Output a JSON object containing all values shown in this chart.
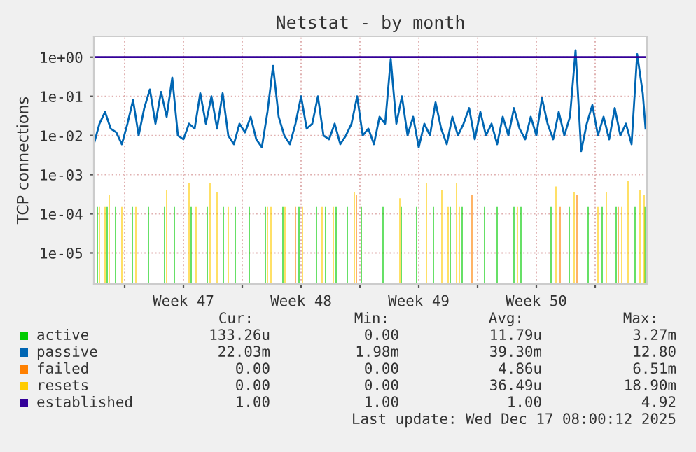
{
  "chart_data": {
    "type": "line",
    "title": "Netstat - by month",
    "ylabel": "TCP connections",
    "log": "y",
    "grid": true,
    "legend": "bottom",
    "line_style": "solid",
    "marker": "none",
    "xlim": [
      "2025-11-15T04:00",
      "2025-12-18T02:00"
    ],
    "ylim": [
      1.6e-06,
      3.4
    ],
    "xticks": [
      {
        "value": "2025-11-17",
        "label": null
      },
      {
        "value": "2025-11-20T12:00",
        "label": "Week 47"
      },
      {
        "value": "2025-11-24",
        "label": null
      },
      {
        "value": "2025-11-27T12:00",
        "label": "Week 48"
      },
      {
        "value": "2025-12-01",
        "label": null
      },
      {
        "value": "2025-12-04T12:00",
        "label": "Week 49"
      },
      {
        "value": "2025-12-08",
        "label": null
      },
      {
        "value": "2025-12-11T12:00",
        "label": "Week 50"
      },
      {
        "value": "2025-12-15",
        "label": null
      }
    ],
    "yticks": [
      {
        "value": 1,
        "label": "1e+00"
      },
      {
        "value": 0.1,
        "label": "1e-01"
      },
      {
        "value": 0.01,
        "label": "1e-02"
      },
      {
        "value": 0.001,
        "label": "1e-03"
      },
      {
        "value": 0.0001,
        "label": "1e-04"
      },
      {
        "value": 1e-05,
        "label": "1e-05"
      }
    ],
    "series": [
      {
        "name": "active",
        "type": "bar",
        "color": "#00cc00",
        "x": [
          "2025-11-15T09:00",
          "2025-11-15T23:00",
          "2025-11-16T11:00",
          "2025-11-17T11:00",
          "2025-11-18T10:00",
          "2025-11-19T09:00",
          "2025-11-19T23:00",
          "2025-11-20T23:00",
          "2025-11-21T22:00",
          "2025-11-22T21:00",
          "2025-11-23T14:00",
          "2025-11-24T10:00",
          "2025-11-25T09:00",
          "2025-11-26T10:00",
          "2025-11-27T09:00",
          "2025-11-28T10:00",
          "2025-11-28T23:00",
          "2025-11-29T14:00",
          "2025-11-30T06:00",
          "2025-12-01T02:00",
          "2025-12-02T09:00",
          "2025-12-03T11:00",
          "2025-12-04T09:00",
          "2025-12-05T09:00",
          "2025-12-06T09:00",
          "2025-12-07T02:00",
          "2025-12-08T10:00",
          "2025-12-09T04:00",
          "2025-12-10T04:00",
          "2025-12-10T14:00",
          "2025-12-12T09:00",
          "2025-12-13T11:00",
          "2025-12-14T14:00",
          "2025-12-15T10:00",
          "2025-12-16T06:00",
          "2025-12-17T09:00",
          "2025-12-17T23:00"
        ],
        "values": [
          0.00015,
          0.00015,
          0.00015,
          0.00015,
          0.00015,
          0.00015,
          0.00015,
          0.00015,
          0.00015,
          0.00015,
          0.00015,
          0.00015,
          0.00015,
          0.00015,
          0.00015,
          0.00015,
          0.00015,
          0.00015,
          0.00015,
          0.00015,
          0.00015,
          0.00015,
          0.00015,
          0.00015,
          0.00015,
          0.00015,
          0.00015,
          0.00015,
          0.00015,
          0.00015,
          0.00015,
          0.00015,
          0.00015,
          0.00015,
          0.00015,
          0.00015,
          0.00015
        ]
      },
      {
        "name": "passive",
        "color": "#0066b3",
        "x": [
          "2025-11-15T04:00",
          "2025-11-15T12:00",
          "2025-11-15T20:00",
          "2025-11-16T04:00",
          "2025-11-16T12:00",
          "2025-11-16T20:00",
          "2025-11-17T04:00",
          "2025-11-17T12:00",
          "2025-11-17T20:00",
          "2025-11-18T04:00",
          "2025-11-18T12:00",
          "2025-11-18T20:00",
          "2025-11-19T04:00",
          "2025-11-19T12:00",
          "2025-11-19T20:00",
          "2025-11-20T04:00",
          "2025-11-20T12:00",
          "2025-11-20T20:00",
          "2025-11-21T04:00",
          "2025-11-21T12:00",
          "2025-11-21T20:00",
          "2025-11-22T04:00",
          "2025-11-22T12:00",
          "2025-11-22T20:00",
          "2025-11-23T04:00",
          "2025-11-23T12:00",
          "2025-11-23T20:00",
          "2025-11-24T04:00",
          "2025-11-24T12:00",
          "2025-11-24T20:00",
          "2025-11-25T04:00",
          "2025-11-25T12:00",
          "2025-11-25T20:00",
          "2025-11-26T04:00",
          "2025-11-26T12:00",
          "2025-11-26T20:00",
          "2025-11-27T04:00",
          "2025-11-27T12:00",
          "2025-11-27T20:00",
          "2025-11-28T04:00",
          "2025-11-28T12:00",
          "2025-11-28T20:00",
          "2025-11-29T04:00",
          "2025-11-29T12:00",
          "2025-11-29T20:00",
          "2025-11-30T04:00",
          "2025-11-30T12:00",
          "2025-11-30T20:00",
          "2025-12-01T04:00",
          "2025-12-01T12:00",
          "2025-12-01T20:00",
          "2025-12-02T04:00",
          "2025-12-02T12:00",
          "2025-12-02T20:00",
          "2025-12-03T04:00",
          "2025-12-03T12:00",
          "2025-12-03T20:00",
          "2025-12-04T04:00",
          "2025-12-04T12:00",
          "2025-12-04T20:00",
          "2025-12-05T04:00",
          "2025-12-05T12:00",
          "2025-12-05T20:00",
          "2025-12-06T04:00",
          "2025-12-06T12:00",
          "2025-12-06T20:00",
          "2025-12-07T04:00",
          "2025-12-07T12:00",
          "2025-12-07T20:00",
          "2025-12-08T04:00",
          "2025-12-08T12:00",
          "2025-12-08T20:00",
          "2025-12-09T04:00",
          "2025-12-09T12:00",
          "2025-12-09T20:00",
          "2025-12-10T04:00",
          "2025-12-10T12:00",
          "2025-12-10T20:00",
          "2025-12-11T04:00",
          "2025-12-11T12:00",
          "2025-12-11T20:00",
          "2025-12-12T04:00",
          "2025-12-12T12:00",
          "2025-12-12T20:00",
          "2025-12-13T04:00",
          "2025-12-13T12:00",
          "2025-12-13T20:00",
          "2025-12-14T04:00",
          "2025-12-14T12:00",
          "2025-12-14T20:00",
          "2025-12-15T04:00",
          "2025-12-15T12:00",
          "2025-12-15T20:00",
          "2025-12-16T04:00",
          "2025-12-16T12:00",
          "2025-12-16T20:00",
          "2025-12-17T04:00",
          "2025-12-17T12:00",
          "2025-12-17T20:00",
          "2025-12-18T00:00"
        ],
        "values": [
          0.006,
          0.02,
          0.04,
          0.015,
          0.012,
          0.006,
          0.02,
          0.08,
          0.01,
          0.05,
          0.15,
          0.02,
          0.13,
          0.03,
          0.3,
          0.01,
          0.008,
          0.02,
          0.015,
          0.12,
          0.02,
          0.1,
          0.015,
          0.12,
          0.01,
          0.006,
          0.02,
          0.012,
          0.03,
          0.008,
          0.005,
          0.04,
          0.6,
          0.03,
          0.01,
          0.006,
          0.02,
          0.1,
          0.015,
          0.02,
          0.1,
          0.01,
          0.008,
          0.02,
          0.006,
          0.01,
          0.02,
          0.1,
          0.01,
          0.015,
          0.006,
          0.03,
          0.02,
          0.9,
          0.02,
          0.1,
          0.01,
          0.03,
          0.005,
          0.02,
          0.01,
          0.07,
          0.015,
          0.006,
          0.03,
          0.01,
          0.02,
          0.05,
          0.008,
          0.04,
          0.01,
          0.02,
          0.006,
          0.03,
          0.01,
          0.05,
          0.015,
          0.008,
          0.03,
          0.01,
          0.09,
          0.02,
          0.008,
          0.04,
          0.01,
          0.03,
          1.5,
          0.004,
          0.02,
          0.06,
          0.01,
          0.03,
          0.008,
          0.05,
          0.01,
          0.02,
          0.006,
          1.2,
          0.12,
          0.015
        ]
      },
      {
        "name": "failed",
        "type": "bar",
        "color": "#ff8000",
        "x": [
          "2025-11-27T04:00",
          "2025-11-30T19:00",
          "2025-12-07T16:00",
          "2025-12-12T22:00",
          "2025-12-13T22:00",
          "2025-12-16T09:00"
        ],
        "values": [
          0.00015,
          0.0003,
          0.0003,
          0.00015,
          0.0003,
          0.00015
        ]
      },
      {
        "name": "resets",
        "type": "bar",
        "color": "#ffcc00",
        "x": [
          "2025-11-15T12:00",
          "2025-11-15T20:00",
          "2025-11-16T02:00",
          "2025-11-16T20:00",
          "2025-11-17T16:00",
          "2025-11-19T12:00",
          "2025-11-20T20:00",
          "2025-11-21T06:00",
          "2025-11-22T02:00",
          "2025-11-22T12:00",
          "2025-11-23T04:00",
          "2025-11-25T12:00",
          "2025-11-25T17:00",
          "2025-11-26T13:00",
          "2025-11-27T14:00",
          "2025-11-28T18:00",
          "2025-11-29T10:00",
          "2025-11-30T16:00",
          "2025-12-03T09:00",
          "2025-12-04T23:00",
          "2025-12-05T21:00",
          "2025-12-06T06:00",
          "2025-12-06T18:00",
          "2025-12-06T22:00",
          "2025-12-10T09:00",
          "2025-12-12T16:00",
          "2025-12-13T18:00",
          "2025-12-15T04:00",
          "2025-12-15T16:00",
          "2025-12-16T14:00",
          "2025-12-16T23:00",
          "2025-12-17T16:00",
          "2025-12-17T22:00"
        ],
        "values": [
          0.00015,
          0.00015,
          0.0003,
          0.00015,
          0.00015,
          0.0004,
          0.0006,
          0.00015,
          0.0006,
          0.00035,
          0.00015,
          0.00015,
          0.00015,
          0.00015,
          0.00015,
          0.00015,
          0.00015,
          0.00035,
          0.00025,
          0.0006,
          0.0004,
          0.00015,
          0.0006,
          0.00015,
          0.00015,
          0.0005,
          0.00035,
          0.00015,
          0.00035,
          0.00015,
          0.0007,
          0.0004,
          0.0003
        ]
      },
      {
        "name": "established",
        "color": "#330099",
        "x": [
          "2025-11-15T04:00",
          "2025-12-18T00:00"
        ],
        "values": [
          1,
          1
        ]
      }
    ],
    "annotations": [
      "Cur:",
      "Min:",
      "Avg:",
      "Max:",
      "133.26u",
      "0.00",
      "11.79u",
      "3.27m",
      "22.03m",
      "1.98m",
      "39.30m",
      "12.80",
      "0.00",
      "0.00",
      "4.86u",
      "6.51m",
      "0.00",
      "0.00",
      "36.49u",
      "18.90m",
      "1.00",
      "1.00",
      "1.00",
      "4.92",
      "Last update: Wed Dec 17 08:00:12 2025"
    ]
  }
}
